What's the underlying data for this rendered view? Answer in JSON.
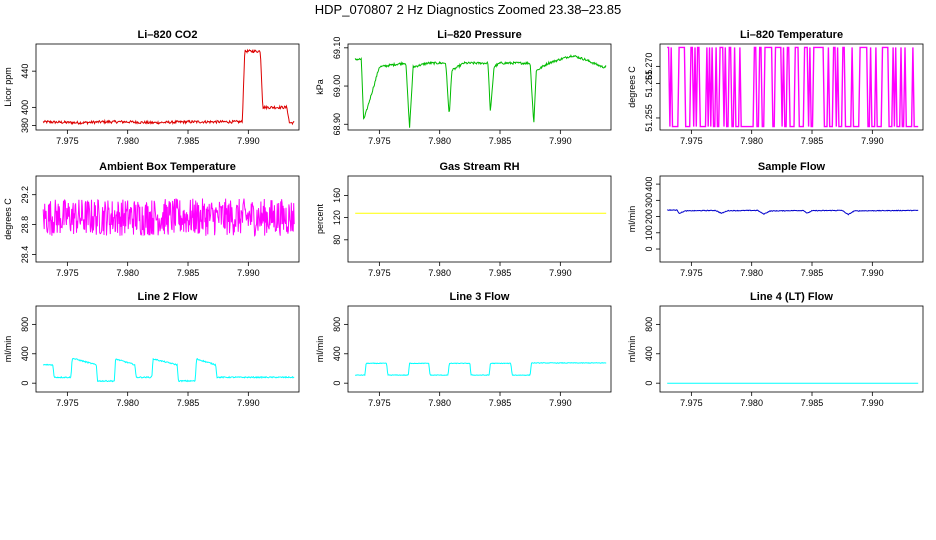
{
  "title": "HDP_070807  2 Hz Diagnostics Zoomed 23.38–23.85",
  "chart_data": [
    {
      "type": "line",
      "title": "Li–820 CO2",
      "xlabel": "",
      "ylabel": "Licor ppm",
      "color": "#dd0000",
      "xlim": [
        7.9724,
        7.9942
      ],
      "ylim": [
        375,
        470
      ],
      "xticks": [
        "7.975",
        "7.980",
        "7.985",
        "7.990"
      ],
      "yticks": [
        "380",
        "400",
        "440"
      ],
      "x": [
        7.973,
        7.976,
        7.978,
        7.98,
        7.982,
        7.985,
        7.988,
        7.9895,
        7.9897,
        7.991,
        7.9912,
        7.9932,
        7.9934,
        7.9938
      ],
      "y": [
        384,
        383,
        384,
        384,
        383,
        384,
        384,
        384,
        462,
        462,
        400,
        400,
        383,
        383
      ],
      "noise": 1.5
    },
    {
      "type": "line",
      "title": "Li–820 Pressure",
      "xlabel": "",
      "ylabel": "kPa",
      "color": "#00bb00",
      "xlim": [
        7.9724,
        7.9942
      ],
      "ylim": [
        68.885,
        69.11
      ],
      "xticks": [
        "7.975",
        "7.980",
        "7.985",
        "7.990"
      ],
      "yticks": [
        "68.90",
        "69.00",
        "69.10"
      ],
      "x": [
        7.973,
        7.9735,
        7.9737,
        7.975,
        7.977,
        7.9772,
        7.9775,
        7.9778,
        7.979,
        7.9805,
        7.9808,
        7.981,
        7.982,
        7.984,
        7.9842,
        7.9845,
        7.985,
        7.9875,
        7.9878,
        7.988,
        7.989,
        7.991,
        7.992,
        7.9935
      ],
      "y": [
        69.07,
        69.07,
        68.91,
        69.05,
        69.06,
        69.06,
        68.89,
        69.05,
        69.06,
        69.06,
        68.92,
        69.04,
        69.06,
        69.06,
        68.93,
        69.05,
        69.06,
        69.06,
        68.9,
        69.04,
        69.06,
        69.08,
        69.07,
        69.05
      ],
      "noise": 0.003
    },
    {
      "type": "line",
      "title": "Li–820 Temperature",
      "xlabel": "",
      "ylabel": "degrees C",
      "color": "#ff00ff",
      "xlim": [
        7.9724,
        7.9942
      ],
      "ylim": [
        51.2515,
        51.2765
      ],
      "xticks": [
        "7.975",
        "7.980",
        "7.985",
        "7.990"
      ],
      "yticks": [
        "51.255",
        "51.265",
        "51.270"
      ],
      "toggle": [
        51.2525,
        51.2755
      ]
    },
    {
      "type": "line",
      "title": "Ambient Box Temperature",
      "xlabel": "",
      "ylabel": "degrees C",
      "color": "#ff00ff",
      "xlim": [
        7.9724,
        7.9942
      ],
      "ylim": [
        28.3,
        29.45
      ],
      "xticks": [
        "7.975",
        "7.980",
        "7.985",
        "7.990"
      ],
      "yticks": [
        "28.4",
        "28.8",
        "29.2"
      ],
      "x": [
        7.973,
        7.9938
      ],
      "y": [
        28.9,
        28.9
      ],
      "noise": 0.25
    },
    {
      "type": "line",
      "title": "Gas Stream RH",
      "xlabel": "",
      "ylabel": "percent",
      "color": "#ffff00",
      "xlim": [
        7.9724,
        7.9942
      ],
      "ylim": [
        40,
        195
      ],
      "xticks": [
        "7.975",
        "7.980",
        "7.985",
        "7.990"
      ],
      "yticks": [
        "80",
        "120",
        "160"
      ],
      "x": [
        7.973,
        7.9938
      ],
      "y": [
        128,
        128
      ]
    },
    {
      "type": "line",
      "title": "Sample Flow",
      "xlabel": "",
      "ylabel": "ml/min",
      "color": "#0000cc",
      "xlim": [
        7.9724,
        7.9942
      ],
      "ylim": [
        -80,
        450
      ],
      "xticks": [
        "7.975",
        "7.980",
        "7.985",
        "7.990"
      ],
      "yticks": [
        "0",
        "100",
        "200",
        "300",
        "400"
      ],
      "x": [
        7.973,
        7.9738,
        7.974,
        7.9745,
        7.977,
        7.9775,
        7.978,
        7.9805,
        7.981,
        7.9815,
        7.9843,
        7.9846,
        7.985,
        7.9875,
        7.988,
        7.9885,
        7.9938
      ],
      "y": [
        240,
        240,
        220,
        235,
        238,
        220,
        236,
        238,
        215,
        234,
        238,
        220,
        236,
        238,
        212,
        235,
        238
      ],
      "noise": 2
    },
    {
      "type": "line",
      "title": "Line 2 Flow",
      "xlabel": "",
      "ylabel": "ml/min",
      "color": "#00ffff",
      "xlim": [
        7.9724,
        7.9942
      ],
      "ylim": [
        -120,
        1050
      ],
      "xticks": [
        "7.975",
        "7.980",
        "7.985",
        "7.990"
      ],
      "yticks": [
        "0",
        "400",
        "800"
      ],
      "x": [
        7.973,
        7.9738,
        7.9739,
        7.9753,
        7.9754,
        7.9774,
        7.9775,
        7.9789,
        7.979,
        7.9806,
        7.9807,
        7.982,
        7.9821,
        7.9841,
        7.9842,
        7.9856,
        7.9857,
        7.9873,
        7.9874,
        7.9938
      ],
      "y": [
        250,
        250,
        80,
        80,
        340,
        250,
        30,
        30,
        330,
        250,
        80,
        80,
        330,
        250,
        30,
        30,
        330,
        250,
        80,
        80
      ],
      "noise": 8
    },
    {
      "type": "line",
      "title": "Line 3 Flow",
      "xlabel": "",
      "ylabel": "ml/min",
      "color": "#00ffff",
      "xlim": [
        7.9724,
        7.9942
      ],
      "ylim": [
        -120,
        1050
      ],
      "xticks": [
        "7.975",
        "7.980",
        "7.985",
        "7.990"
      ],
      "yticks": [
        "0",
        "400",
        "800"
      ],
      "x": [
        7.973,
        7.9738,
        7.9739,
        7.9756,
        7.9757,
        7.9774,
        7.9775,
        7.9791,
        7.9792,
        7.9807,
        7.9808,
        7.9825,
        7.9826,
        7.9841,
        7.9842,
        7.9859,
        7.986,
        7.9875,
        7.9876,
        7.9938
      ],
      "y": [
        110,
        110,
        270,
        270,
        110,
        110,
        270,
        270,
        110,
        110,
        270,
        270,
        110,
        110,
        270,
        270,
        110,
        110,
        275,
        275
      ],
      "noise": 4
    },
    {
      "type": "line",
      "title": "Line 4 (LT) Flow",
      "xlabel": "",
      "ylabel": "ml/min",
      "color": "#00ffff",
      "xlim": [
        7.9724,
        7.9942
      ],
      "ylim": [
        -120,
        1050
      ],
      "xticks": [
        "7.975",
        "7.980",
        "7.985",
        "7.990"
      ],
      "yticks": [
        "0",
        "400",
        "800"
      ],
      "x": [
        7.973,
        7.9938
      ],
      "y": [
        0,
        0
      ]
    }
  ]
}
